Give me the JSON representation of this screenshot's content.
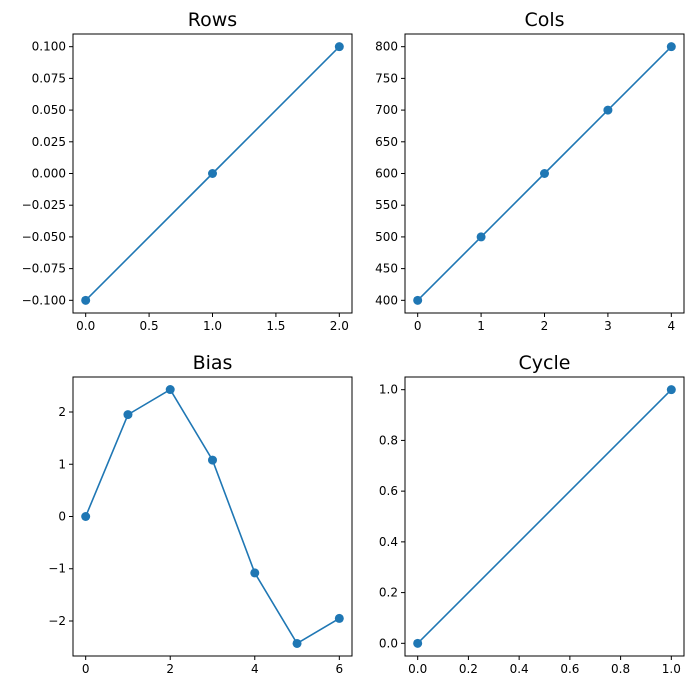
{
  "colors": {
    "series": "#1f77b4",
    "background": "#ffffff",
    "axes": "#000000"
  },
  "chart_data": [
    {
      "type": "line",
      "title": "Rows",
      "marker": "circle",
      "x": [
        0,
        1,
        2
      ],
      "y": [
        -0.1,
        0.0,
        0.1
      ],
      "xlim": [
        -0.1,
        2.1
      ],
      "ylim": [
        -0.11,
        0.11
      ],
      "xticks": [
        0.0,
        0.5,
        1.0,
        1.5,
        2.0
      ],
      "xtick_labels": [
        "0.0",
        "0.5",
        "1.0",
        "1.5",
        "2.0"
      ],
      "yticks": [
        -0.1,
        -0.075,
        -0.05,
        -0.025,
        0.0,
        0.025,
        0.05,
        0.075,
        0.1
      ],
      "ytick_labels": [
        "−0.100",
        "−0.075",
        "−0.050",
        "−0.025",
        "0.000",
        "0.025",
        "0.050",
        "0.075",
        "0.100"
      ],
      "grid": false
    },
    {
      "type": "line",
      "title": "Cols",
      "marker": "circle",
      "x": [
        0,
        1,
        2,
        3,
        4
      ],
      "y": [
        400,
        500,
        600,
        700,
        800
      ],
      "xlim": [
        -0.2,
        4.2
      ],
      "ylim": [
        380,
        820
      ],
      "xticks": [
        0,
        1,
        2,
        3,
        4
      ],
      "xtick_labels": [
        "0",
        "1",
        "2",
        "3",
        "4"
      ],
      "yticks": [
        400,
        450,
        500,
        550,
        600,
        650,
        700,
        750,
        800
      ],
      "ytick_labels": [
        "400",
        "450",
        "500",
        "550",
        "600",
        "650",
        "700",
        "750",
        "800"
      ],
      "grid": false
    },
    {
      "type": "line",
      "title": "Bias",
      "marker": "circle",
      "x": [
        0,
        1,
        2,
        3,
        4,
        5,
        6
      ],
      "y": [
        0.0,
        1.95,
        2.43,
        1.08,
        -1.08,
        -2.43,
        -1.95
      ],
      "xlim": [
        -0.3,
        6.3
      ],
      "ylim": [
        -2.67,
        2.67
      ],
      "xticks": [
        0,
        2,
        4,
        6
      ],
      "xtick_labels": [
        "0",
        "2",
        "4",
        "6"
      ],
      "yticks": [
        -2,
        -1,
        0,
        1,
        2
      ],
      "ytick_labels": [
        "−2",
        "−1",
        "0",
        "1",
        "2"
      ],
      "grid": false
    },
    {
      "type": "line",
      "title": "Cycle",
      "marker": "circle",
      "x": [
        0.0,
        1.0
      ],
      "y": [
        0.0,
        1.0
      ],
      "xlim": [
        -0.05,
        1.05
      ],
      "ylim": [
        -0.05,
        1.05
      ],
      "xticks": [
        0.0,
        0.2,
        0.4,
        0.6,
        0.8,
        1.0
      ],
      "xtick_labels": [
        "0.0",
        "0.2",
        "0.4",
        "0.6",
        "0.8",
        "1.0"
      ],
      "yticks": [
        0.0,
        0.2,
        0.4,
        0.6,
        0.8,
        1.0
      ],
      "ytick_labels": [
        "0.0",
        "0.2",
        "0.4",
        "0.6",
        "0.8",
        "1.0"
      ],
      "grid": false
    }
  ]
}
